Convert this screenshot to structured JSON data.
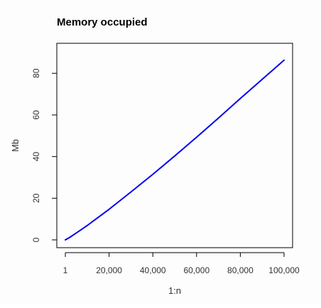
{
  "chart_data": {
    "type": "line",
    "title": "Memory occupied",
    "xlabel": "1:n",
    "ylabel": "Mb",
    "xlim": [
      1,
      100000
    ],
    "ylim": [
      0,
      91
    ],
    "x_ticks": [
      1,
      20000,
      40000,
      60000,
      80000,
      100000
    ],
    "x_tick_labels": [
      "1",
      "20,000",
      "40,000",
      "60,000",
      "80,000",
      "100,000"
    ],
    "y_ticks": [
      0,
      20,
      40,
      60,
      80
    ],
    "y_tick_labels": [
      "0",
      "20",
      "40",
      "60",
      "80"
    ],
    "grid": false,
    "legend": "none",
    "series": [
      {
        "color": "#0000ee",
        "x": [
          1,
          2000,
          5000,
          10000,
          20000,
          30000,
          40000,
          50000,
          60000,
          70000,
          80000,
          90000,
          100000
        ],
        "y": [
          0,
          1.2,
          3.3,
          6.9,
          14.7,
          23.0,
          31.5,
          40.3,
          49.3,
          58.5,
          67.9,
          77.1,
          86.3
        ]
      }
    ]
  }
}
